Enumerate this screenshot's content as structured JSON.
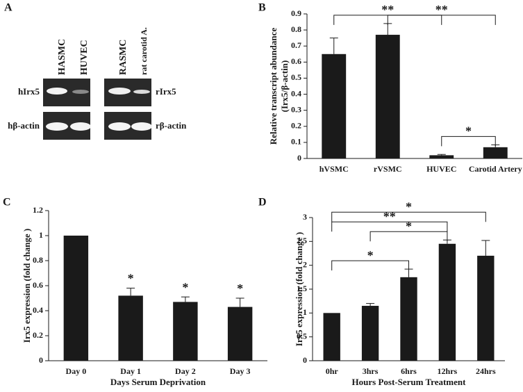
{
  "gel": {
    "panel_label": "A",
    "columns": [
      "HASMC",
      "HUVEC",
      "RASMC",
      "rat carotid A."
    ],
    "rows_left": [
      "hIrx5",
      "hβ-actin"
    ],
    "rows_right": [
      "rIrx5",
      "rβ-actin"
    ]
  },
  "chart_data": [
    {
      "type": "bar",
      "panel_label": "B",
      "ylabel": [
        "Relative transcript abundance",
        "(Irx5/β-actin)"
      ],
      "categories": [
        "hVSMC",
        "rVSMC",
        "HUVEC",
        "Carotid Artery"
      ],
      "series": [
        {
          "color": "#1a1a1a",
          "values": [
            0.65,
            0.77,
            0.02,
            0.07
          ],
          "errors": [
            0.1,
            0.07,
            0.005,
            0.015
          ]
        }
      ],
      "ylim": [
        0,
        0.9
      ],
      "yticks": [
        0,
        0.1,
        0.2,
        0.3,
        0.4,
        0.5,
        0.6,
        0.7,
        0.8,
        0.9
      ],
      "brackets": [
        {
          "label": "*",
          "from": "HUVEC",
          "to": "Carotid Artery"
        },
        {
          "label": "**",
          "from": "hVSMC",
          "to": "HUVEC"
        },
        {
          "label": "**",
          "from": "rVSMC",
          "to": "Carotid Artery"
        }
      ]
    },
    {
      "type": "bar",
      "panel_label": "C",
      "ylabel": [
        "Irx5 expression (fold change )"
      ],
      "xlabel": "Days Serum Deprivation",
      "categories": [
        "Day 0",
        "Day 1",
        "Day 2",
        "Day 3"
      ],
      "series": [
        {
          "color": "#1a1a1a",
          "values": [
            1,
            0.52,
            0.47,
            0.43
          ],
          "errors": [
            null,
            0.06,
            0.04,
            0.07
          ]
        }
      ],
      "significance": [
        null,
        "*",
        "*",
        "*"
      ],
      "ylim": [
        0,
        1.2
      ],
      "yticks": [
        0,
        0.2,
        0.4,
        0.6,
        0.8,
        1,
        1.2
      ]
    },
    {
      "type": "bar",
      "panel_label": "D",
      "ylabel": [
        "Irx5 expression (fold change )"
      ],
      "xlabel": "Hours  Post-Serum Treatment",
      "categories": [
        "0hr",
        "3hrs",
        "6hrs",
        "12hrs",
        "24hrs"
      ],
      "series": [
        {
          "color": "#1a1a1a",
          "values": [
            1,
            1.15,
            1.75,
            2.45,
            2.2
          ],
          "errors": [
            null,
            0.05,
            0.17,
            0.08,
            0.32
          ]
        }
      ],
      "ylim": [
        0,
        3
      ],
      "yticks": [
        0,
        0.5,
        1,
        1.5,
        2,
        2.5,
        3
      ],
      "brackets": [
        {
          "label": "*",
          "from": "0hr",
          "to": "6hrs"
        },
        {
          "label": "*",
          "from": "3hrs",
          "to": "12hrs"
        },
        {
          "label": "**",
          "from": "0hr",
          "to": "12hrs"
        },
        {
          "label": "*",
          "from": "0hr",
          "to": "24hrs"
        }
      ]
    }
  ]
}
